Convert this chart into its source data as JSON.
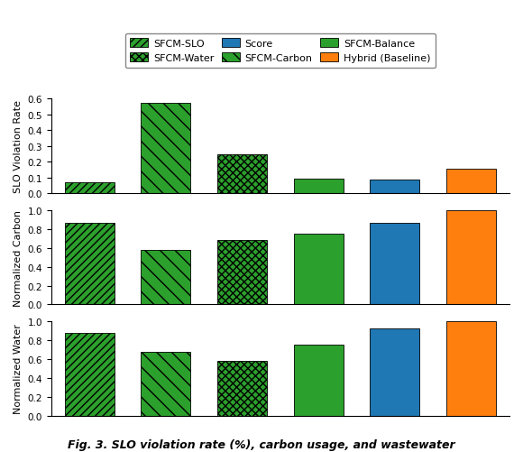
{
  "categories": [
    "SFCM-SLO",
    "SFCM-Carbon",
    "SFCM-Water",
    "SFCM-Balance",
    "Score",
    "Hybrid (Baseline)"
  ],
  "slo_values": [
    0.07,
    0.575,
    0.245,
    0.09,
    0.085,
    0.155
  ],
  "carbon_values": [
    0.86,
    0.575,
    0.685,
    0.75,
    0.865,
    1.0
  ],
  "water_values": [
    0.875,
    0.675,
    0.585,
    0.75,
    0.93,
    1.0
  ],
  "bar_colors": [
    "#2ca02c",
    "#2ca02c",
    "#2ca02c",
    "#2ca02c",
    "#1f77b4",
    "#ff7f0e"
  ],
  "hatch_patterns": [
    "////",
    "\\\\",
    "xxxx",
    "",
    "",
    ""
  ],
  "ylabel1": "SLO Violation Rate",
  "ylabel2": "Normalized Carbon",
  "ylabel3": "Normalized Water",
  "ylim1": [
    0.0,
    0.6
  ],
  "ylim2": [
    0.0,
    1.0
  ],
  "ylim3": [
    0.0,
    1.0
  ],
  "yticks1": [
    0.0,
    0.1,
    0.2,
    0.3,
    0.4,
    0.5,
    0.6
  ],
  "yticks23": [
    0.0,
    0.2,
    0.4,
    0.6,
    0.8,
    1.0
  ],
  "fig_caption": "Fig. 3. SLO violation rate (%), carbon usage, and wastewater",
  "bar_width": 0.65,
  "background_color": "#ffffff"
}
